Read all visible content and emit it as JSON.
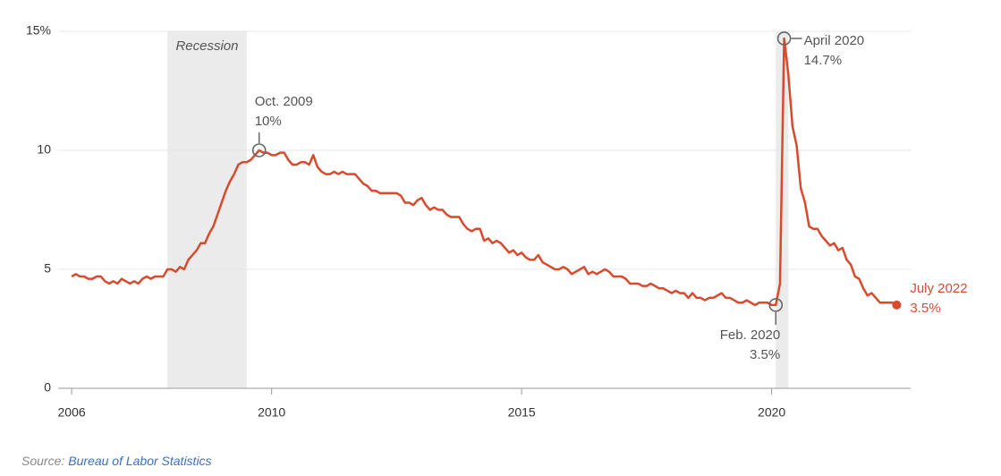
{
  "chart_data": {
    "type": "line",
    "color": "#d84a2d",
    "xlim": [
      2005.73,
      2022.78
    ],
    "xticks": [
      2006,
      2010,
      2015,
      2020
    ],
    "ylim": [
      0,
      15
    ],
    "yticks": [
      0,
      5,
      10,
      {
        "value": 15,
        "label": "15%"
      }
    ],
    "grid": true,
    "recessions": [
      {
        "label": "Recession",
        "start": 2007.917,
        "end": 2009.5
      },
      {
        "start": 2020.083,
        "end": 2020.333
      }
    ],
    "annotations": [
      {
        "label": "Oct. 2009",
        "value_label": "10%",
        "x": 2009.75,
        "y": 10
      },
      {
        "label": "April 2020",
        "value_label": "14.7%",
        "x": 2020.25,
        "y": 14.7
      },
      {
        "label": "Feb. 2020",
        "value_label": "3.5%",
        "x": 2020.083,
        "y": 3.5
      },
      {
        "label": "July 2022",
        "value_label": "3.5%",
        "x": 2022.5,
        "y": 3.5
      }
    ],
    "x": [
      2006,
      2006.083,
      2006.167,
      2006.25,
      2006.333,
      2006.417,
      2006.5,
      2006.583,
      2006.667,
      2006.75,
      2006.833,
      2006.917,
      2007,
      2007.083,
      2007.167,
      2007.25,
      2007.333,
      2007.417,
      2007.5,
      2007.583,
      2007.667,
      2007.75,
      2007.833,
      2007.917,
      2008,
      2008.083,
      2008.167,
      2008.25,
      2008.333,
      2008.417,
      2008.5,
      2008.583,
      2008.667,
      2008.75,
      2008.833,
      2008.917,
      2009,
      2009.083,
      2009.167,
      2009.25,
      2009.333,
      2009.417,
      2009.5,
      2009.583,
      2009.667,
      2009.75,
      2009.833,
      2009.917,
      2010,
      2010.083,
      2010.167,
      2010.25,
      2010.333,
      2010.417,
      2010.5,
      2010.583,
      2010.667,
      2010.75,
      2010.833,
      2010.917,
      2011,
      2011.083,
      2011.167,
      2011.25,
      2011.333,
      2011.417,
      2011.5,
      2011.583,
      2011.667,
      2011.75,
      2011.833,
      2011.917,
      2012,
      2012.083,
      2012.167,
      2012.25,
      2012.333,
      2012.417,
      2012.5,
      2012.583,
      2012.667,
      2012.75,
      2012.833,
      2012.917,
      2013,
      2013.083,
      2013.167,
      2013.25,
      2013.333,
      2013.417,
      2013.5,
      2013.583,
      2013.667,
      2013.75,
      2013.833,
      2013.917,
      2014,
      2014.083,
      2014.167,
      2014.25,
      2014.333,
      2014.417,
      2014.5,
      2014.583,
      2014.667,
      2014.75,
      2014.833,
      2014.917,
      2015,
      2015.083,
      2015.167,
      2015.25,
      2015.333,
      2015.417,
      2015.5,
      2015.583,
      2015.667,
      2015.75,
      2015.833,
      2015.917,
      2016,
      2016.083,
      2016.167,
      2016.25,
      2016.333,
      2016.417,
      2016.5,
      2016.583,
      2016.667,
      2016.75,
      2016.833,
      2016.917,
      2017,
      2017.083,
      2017.167,
      2017.25,
      2017.333,
      2017.417,
      2017.5,
      2017.583,
      2017.667,
      2017.75,
      2017.833,
      2017.917,
      2018,
      2018.083,
      2018.167,
      2018.25,
      2018.333,
      2018.417,
      2018.5,
      2018.583,
      2018.667,
      2018.75,
      2018.833,
      2018.917,
      2019,
      2019.083,
      2019.167,
      2019.25,
      2019.333,
      2019.417,
      2019.5,
      2019.583,
      2019.667,
      2019.75,
      2019.833,
      2019.917,
      2020,
      2020.083,
      2020.167,
      2020.25,
      2020.333,
      2020.417,
      2020.5,
      2020.583,
      2020.667,
      2020.75,
      2020.833,
      2020.917,
      2021,
      2021.083,
      2021.167,
      2021.25,
      2021.333,
      2021.417,
      2021.5,
      2021.583,
      2021.667,
      2021.75,
      2021.833,
      2021.917,
      2022,
      2022.083,
      2022.167,
      2022.25,
      2022.333,
      2022.417,
      2022.5
    ],
    "values": [
      4.7,
      4.8,
      4.7,
      4.7,
      4.6,
      4.6,
      4.7,
      4.7,
      4.5,
      4.4,
      4.5,
      4.4,
      4.6,
      4.5,
      4.4,
      4.5,
      4.4,
      4.6,
      4.7,
      4.6,
      4.7,
      4.7,
      4.7,
      5.0,
      5.0,
      4.9,
      5.1,
      5.0,
      5.4,
      5.6,
      5.8,
      6.1,
      6.1,
      6.5,
      6.8,
      7.3,
      7.8,
      8.3,
      8.7,
      9.0,
      9.4,
      9.5,
      9.5,
      9.6,
      9.8,
      10.0,
      9.9,
      9.9,
      9.8,
      9.8,
      9.9,
      9.9,
      9.6,
      9.4,
      9.4,
      9.5,
      9.5,
      9.4,
      9.8,
      9.3,
      9.1,
      9.0,
      9.0,
      9.1,
      9.0,
      9.1,
      9.0,
      9.0,
      9.0,
      8.8,
      8.6,
      8.5,
      8.3,
      8.3,
      8.2,
      8.2,
      8.2,
      8.2,
      8.2,
      8.1,
      7.8,
      7.8,
      7.7,
      7.9,
      8.0,
      7.7,
      7.5,
      7.6,
      7.5,
      7.5,
      7.3,
      7.2,
      7.2,
      7.2,
      6.9,
      6.7,
      6.6,
      6.7,
      6.7,
      6.2,
      6.3,
      6.1,
      6.2,
      6.1,
      5.9,
      5.7,
      5.8,
      5.6,
      5.7,
      5.5,
      5.4,
      5.4,
      5.6,
      5.3,
      5.2,
      5.1,
      5.0,
      5.0,
      5.1,
      5.0,
      4.8,
      4.9,
      5.0,
      5.1,
      4.8,
      4.9,
      4.8,
      4.9,
      5.0,
      4.9,
      4.7,
      4.7,
      4.7,
      4.6,
      4.4,
      4.4,
      4.4,
      4.3,
      4.3,
      4.4,
      4.3,
      4.2,
      4.2,
      4.1,
      4.0,
      4.1,
      4.0,
      4.0,
      3.8,
      4.0,
      3.8,
      3.8,
      3.7,
      3.8,
      3.8,
      3.9,
      4.0,
      3.8,
      3.8,
      3.7,
      3.6,
      3.6,
      3.7,
      3.6,
      3.5,
      3.6,
      3.6,
      3.6,
      3.5,
      3.5,
      4.4,
      14.7,
      13.2,
      11.0,
      10.2,
      8.4,
      7.8,
      6.8,
      6.7,
      6.7,
      6.4,
      6.2,
      6.0,
      6.1,
      5.8,
      5.9,
      5.4,
      5.2,
      4.7,
      4.6,
      4.2,
      3.9,
      4.0,
      3.8,
      3.6,
      3.6,
      3.6,
      3.6,
      3.5
    ],
    "source": {
      "prefix": "Source:",
      "name": "Bureau of Labor Statistics"
    }
  }
}
